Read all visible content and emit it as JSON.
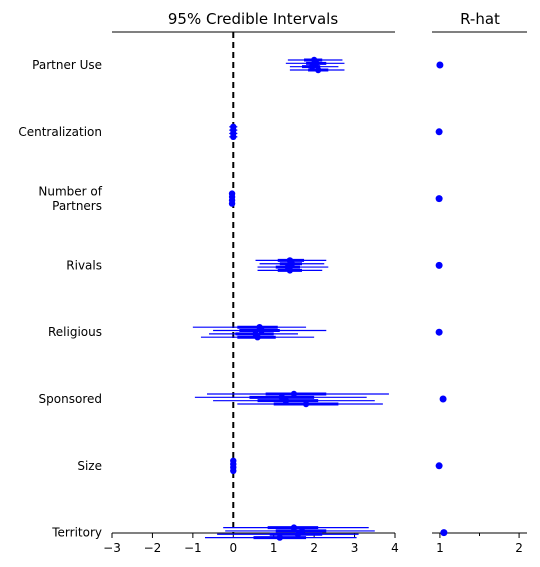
{
  "chart_data": [
    {
      "type": "forest",
      "title": "95% Credible Intervals",
      "xlabel": "",
      "ylabel": "",
      "xlim": [
        -3,
        4
      ],
      "xticks": [
        "−3",
        "−2",
        "−1",
        "0",
        "1",
        "2",
        "3",
        "4"
      ],
      "xtick_values": [
        -3,
        -2,
        -1,
        0,
        1,
        2,
        3,
        4
      ],
      "reference_line": 0,
      "color": "#0000ff",
      "variables": [
        {
          "label": "Partner Use",
          "chains": [
            {
              "mean": 2.0,
              "inner": [
                1.75,
                2.2
              ],
              "outer": [
                1.35,
                2.7
              ]
            },
            {
              "mean": 2.05,
              "inner": [
                1.8,
                2.3
              ],
              "outer": [
                1.3,
                2.75
              ]
            },
            {
              "mean": 1.95,
              "inner": [
                1.7,
                2.15
              ],
              "outer": [
                1.4,
                2.6
              ]
            },
            {
              "mean": 2.1,
              "inner": [
                1.85,
                2.35
              ],
              "outer": [
                1.4,
                2.75
              ]
            }
          ]
        },
        {
          "label": "Centralization",
          "chains": [
            {
              "mean": 0.0,
              "inner": [
                -0.05,
                0.05
              ],
              "outer": [
                -0.1,
                0.1
              ]
            },
            {
              "mean": 0.0,
              "inner": [
                -0.05,
                0.05
              ],
              "outer": [
                -0.1,
                0.1
              ]
            },
            {
              "mean": 0.0,
              "inner": [
                -0.05,
                0.05
              ],
              "outer": [
                -0.1,
                0.1
              ]
            },
            {
              "mean": 0.0,
              "inner": [
                -0.05,
                0.05
              ],
              "outer": [
                -0.1,
                0.1
              ]
            }
          ]
        },
        {
          "label": "Number of\nPartners",
          "chains": [
            {
              "mean": -0.03,
              "inner": [
                -0.05,
                0.0
              ],
              "outer": [
                -0.07,
                0.02
              ]
            },
            {
              "mean": -0.03,
              "inner": [
                -0.05,
                0.0
              ],
              "outer": [
                -0.07,
                0.02
              ]
            },
            {
              "mean": -0.03,
              "inner": [
                -0.05,
                0.0
              ],
              "outer": [
                -0.07,
                0.02
              ]
            },
            {
              "mean": -0.03,
              "inner": [
                -0.05,
                0.0
              ],
              "outer": [
                -0.07,
                0.02
              ]
            }
          ]
        },
        {
          "label": "Rivals",
          "chains": [
            {
              "mean": 1.4,
              "inner": [
                1.1,
                1.75
              ],
              "outer": [
                0.55,
                2.3
              ]
            },
            {
              "mean": 1.45,
              "inner": [
                1.15,
                1.7
              ],
              "outer": [
                0.65,
                2.25
              ]
            },
            {
              "mean": 1.35,
              "inner": [
                1.05,
                1.65
              ],
              "outer": [
                0.6,
                2.35
              ]
            },
            {
              "mean": 1.4,
              "inner": [
                1.1,
                1.7
              ],
              "outer": [
                0.6,
                2.2
              ]
            }
          ]
        },
        {
          "label": "Religious",
          "chains": [
            {
              "mean": 0.65,
              "inner": [
                0.1,
                1.1
              ],
              "outer": [
                -1.0,
                1.8
              ]
            },
            {
              "mean": 0.7,
              "inner": [
                0.15,
                1.15
              ],
              "outer": [
                -0.5,
                2.3
              ]
            },
            {
              "mean": 0.55,
              "inner": [
                0.05,
                1.0
              ],
              "outer": [
                -0.6,
                1.6
              ]
            },
            {
              "mean": 0.6,
              "inner": [
                0.1,
                1.05
              ],
              "outer": [
                -0.8,
                2.0
              ]
            }
          ]
        },
        {
          "label": "Sponsored",
          "chains": [
            {
              "mean": 1.5,
              "inner": [
                0.8,
                2.3
              ],
              "outer": [
                -0.65,
                3.85
              ]
            },
            {
              "mean": 1.2,
              "inner": [
                0.4,
                2.0
              ],
              "outer": [
                -0.95,
                3.3
              ]
            },
            {
              "mean": 1.3,
              "inner": [
                0.6,
                2.1
              ],
              "outer": [
                -0.5,
                3.5
              ]
            },
            {
              "mean": 1.8,
              "inner": [
                1.0,
                2.6
              ],
              "outer": [
                0.1,
                3.7
              ]
            }
          ]
        },
        {
          "label": "Size",
          "chains": [
            {
              "mean": 0.0,
              "inner": [
                -0.03,
                0.03
              ],
              "outer": [
                -0.06,
                0.06
              ]
            },
            {
              "mean": 0.0,
              "inner": [
                -0.03,
                0.03
              ],
              "outer": [
                -0.06,
                0.06
              ]
            },
            {
              "mean": 0.0,
              "inner": [
                -0.03,
                0.03
              ],
              "outer": [
                -0.06,
                0.06
              ]
            },
            {
              "mean": 0.0,
              "inner": [
                -0.03,
                0.03
              ],
              "outer": [
                -0.06,
                0.06
              ]
            }
          ]
        },
        {
          "label": "Territory",
          "chains": [
            {
              "mean": 1.5,
              "inner": [
                0.85,
                2.1
              ],
              "outer": [
                -0.25,
                3.35
              ]
            },
            {
              "mean": 1.7,
              "inner": [
                1.05,
                2.3
              ],
              "outer": [
                -0.2,
                3.5
              ]
            },
            {
              "mean": 1.6,
              "inner": [
                0.9,
                2.2
              ],
              "outer": [
                -0.4,
                3.1
              ]
            },
            {
              "mean": 1.15,
              "inner": [
                0.5,
                1.8
              ],
              "outer": [
                -0.7,
                3.05
              ]
            }
          ]
        }
      ]
    },
    {
      "type": "scatter",
      "title": "R-hat",
      "xlim": [
        0.9,
        2.1
      ],
      "xticks": [
        "1",
        "2"
      ],
      "xtick_values": [
        1,
        2
      ],
      "minor_ticks": [
        1.5
      ],
      "color": "#0000ff",
      "values": [
        1.0,
        0.99,
        0.99,
        0.99,
        0.99,
        1.04,
        0.99,
        1.05
      ]
    }
  ]
}
